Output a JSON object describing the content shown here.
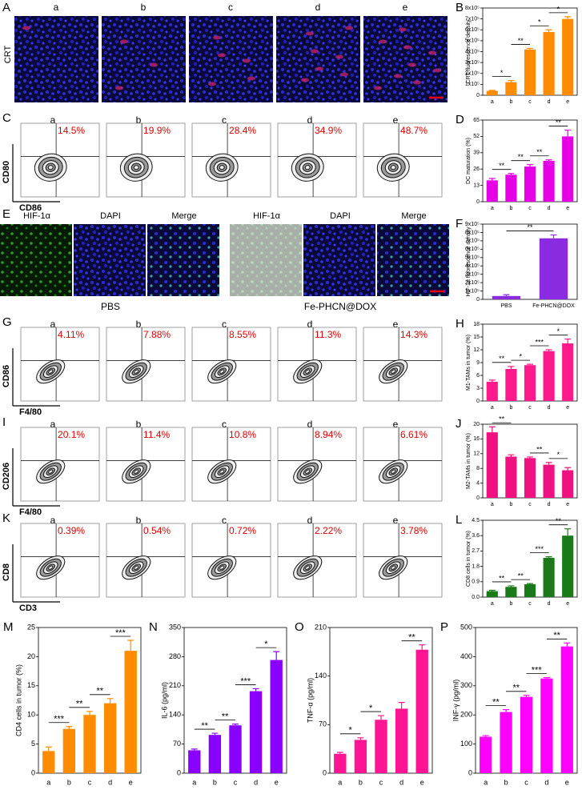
{
  "image_rows": [
    {
      "letter": "A",
      "row_label": "CRT",
      "groups": [
        "a",
        "b",
        "c",
        "d",
        "e"
      ]
    },
    {
      "letter": "E",
      "sets": [
        {
          "label": "PBS",
          "channels": [
            "HIF-1α",
            "DAPI",
            "Merge"
          ]
        },
        {
          "label": "Fe-PHCN@DOX",
          "channels": [
            "HIF-1α",
            "DAPI",
            "Merge"
          ]
        }
      ]
    }
  ],
  "flow_rows": [
    {
      "letter": "C",
      "y_label": "CD80",
      "x_label": "CD86",
      "groups": [
        "a",
        "b",
        "c",
        "d",
        "e"
      ],
      "percents": [
        "14.5%",
        "19.9%",
        "28.4%",
        "34.9%",
        "48.7%"
      ]
    },
    {
      "letter": "G",
      "y_label": "CD86",
      "x_label": "F4/80",
      "groups": [
        "a",
        "b",
        "c",
        "d",
        "e"
      ],
      "percents": [
        "4.11%",
        "7.88%",
        "8.55%",
        "11.3%",
        "14.3%"
      ]
    },
    {
      "letter": "I",
      "y_label": "CD206",
      "x_label": "F4/80",
      "groups": [
        "a",
        "b",
        "c",
        "d",
        "e"
      ],
      "percents": [
        "20.1%",
        "11.4%",
        "10.8%",
        "8.94%",
        "6.61%"
      ]
    },
    {
      "letter": "K",
      "y_label": "CD8",
      "x_label": "CD3",
      "groups": [
        "a",
        "b",
        "c",
        "d",
        "e"
      ],
      "percents": [
        "0.39%",
        "0.54%",
        "0.72%",
        "2.22%",
        "3.78%"
      ]
    }
  ],
  "chart_data": [
    {
      "type": "bar",
      "panel": "B",
      "y_label": "CRT fluorescence density",
      "categories": [
        "a",
        "b",
        "c",
        "d",
        "e"
      ],
      "values": [
        40000,
        120000,
        420000,
        580000,
        700000
      ],
      "errors": [
        5000,
        15000,
        10000,
        20000,
        20000
      ],
      "color": "#ff8c00",
      "ylim": [
        0,
        800000
      ],
      "yticks": [
        0,
        {
          "value": 100000,
          "label": "1x10⁵"
        },
        {
          "value": 200000,
          "label": "2x10⁵"
        },
        {
          "value": 300000,
          "label": "3x10⁵"
        },
        {
          "value": 400000,
          "label": "4x10⁵"
        },
        {
          "value": 500000,
          "label": "5x10⁵"
        },
        {
          "value": 600000,
          "label": "6x10⁵"
        },
        {
          "value": 700000,
          "label": "7x10⁵"
        },
        {
          "value": 800000,
          "label": "8x10⁵"
        }
      ],
      "significance": [
        "*",
        "**",
        "*",
        "*"
      ]
    },
    {
      "type": "bar",
      "panel": "D",
      "y_label": "DC maturation (%)",
      "categories": [
        "a",
        "b",
        "c",
        "d",
        "e"
      ],
      "values": [
        17,
        21.5,
        28,
        32.5,
        52
      ],
      "errors": [
        1.5,
        1,
        1.5,
        0.8,
        5
      ],
      "color": "#e600e6",
      "ylim": [
        0,
        65
      ],
      "yticks": [
        0,
        13,
        26,
        39,
        52,
        65
      ],
      "significance": [
        "**",
        "**",
        "**",
        "**"
      ]
    },
    {
      "type": "bar",
      "panel": "F",
      "y_label": "HIF-1α fluorescence density",
      "categories": [
        "PBS",
        "Fe-PHCN@DOX"
      ],
      "values": [
        40000,
        730000
      ],
      "errors": [
        15000,
        40000
      ],
      "color": "#8a2be2",
      "ylim": [
        0,
        900000
      ],
      "yticks": [
        0,
        {
          "value": 100000,
          "label": "1x10⁵"
        },
        {
          "value": 200000,
          "label": "2x10⁵"
        },
        {
          "value": 300000,
          "label": "3x10⁵"
        },
        {
          "value": 400000,
          "label": "4x10⁵"
        },
        {
          "value": 500000,
          "label": "5x10⁵"
        },
        {
          "value": 600000,
          "label": "6x10⁵"
        },
        {
          "value": 700000,
          "label": "7x10⁵"
        },
        {
          "value": 800000,
          "label": "8x10⁵"
        },
        {
          "value": 900000,
          "label": "9x10⁵"
        }
      ],
      "significance": [
        "**"
      ]
    },
    {
      "type": "bar",
      "panel": "H",
      "y_label": "M1-TAMs in tumor (%)",
      "categories": [
        "a",
        "b",
        "c",
        "d",
        "e"
      ],
      "values": [
        4.5,
        7.5,
        8.4,
        11.7,
        13.5
      ],
      "errors": [
        0.4,
        0.6,
        0.2,
        0.3,
        1
      ],
      "color": "#ff1a8c",
      "ylim": [
        0,
        18
      ],
      "yticks": [
        0,
        3,
        6,
        9,
        12,
        15,
        18
      ],
      "significance": [
        "**",
        "*",
        "***",
        "*"
      ]
    },
    {
      "type": "bar",
      "panel": "J",
      "y_label": "M2-TAMs in tumor (%)",
      "categories": [
        "a",
        "b",
        "c",
        "d",
        "e"
      ],
      "values": [
        17.8,
        11.2,
        10.8,
        9,
        7.5
      ],
      "errors": [
        1.5,
        0.5,
        0.3,
        0.6,
        0.7
      ],
      "color": "#f0107f",
      "ylim": [
        0,
        20
      ],
      "yticks": [
        0,
        4,
        8,
        12,
        16,
        20
      ],
      "significance": [
        "**",
        null,
        "**",
        "*"
      ]
    },
    {
      "type": "bar",
      "panel": "L",
      "y_label": "CD8 cells in tumor (%)",
      "categories": [
        "a",
        "b",
        "c",
        "d",
        "e"
      ],
      "values": [
        0.35,
        0.6,
        0.75,
        2.3,
        3.6
      ],
      "errors": [
        0.05,
        0.06,
        0.04,
        0.06,
        0.4
      ],
      "color": "#1a7a1a",
      "ylim": [
        0,
        4.5
      ],
      "yticks": [
        {
          "value": 0,
          "label": "0.0"
        },
        0.9,
        1.8,
        2.7,
        3.6,
        4.5
      ],
      "significance": [
        "**",
        "**",
        "***",
        "**"
      ]
    },
    {
      "type": "bar",
      "panel": "M",
      "y_label": "CD4 cells in tumor (%)",
      "categories": [
        "a",
        "b",
        "c",
        "d",
        "e"
      ],
      "values": [
        3.8,
        7.6,
        10,
        12,
        21
      ],
      "errors": [
        0.7,
        0.4,
        0.6,
        0.8,
        1.8
      ],
      "color": "#ff8c00",
      "ylim": [
        0,
        25
      ],
      "yticks": [
        0,
        5,
        10,
        15,
        20,
        25
      ],
      "significance": [
        "***",
        "**",
        "**",
        "***"
      ]
    },
    {
      "type": "bar",
      "panel": "N",
      "y_label": "IL-6 (pg/ml)",
      "categories": [
        "a",
        "b",
        "c",
        "d",
        "e"
      ],
      "values": [
        55,
        92,
        115,
        197,
        272
      ],
      "errors": [
        3,
        4,
        3,
        6,
        20
      ],
      "color": "#8a00ff",
      "ylim": [
        0,
        350
      ],
      "yticks": [
        0,
        70,
        140,
        210,
        280,
        350
      ],
      "significance": [
        "**",
        "**",
        "***",
        "*"
      ]
    },
    {
      "type": "bar",
      "panel": "O",
      "y_label": "TNF-α (pg/ml)",
      "categories": [
        "a",
        "b",
        "c",
        "d",
        "e"
      ],
      "values": [
        28,
        48,
        77,
        93,
        178
      ],
      "errors": [
        2,
        3,
        6,
        9,
        7
      ],
      "color": "#ff1493",
      "ylim": [
        0,
        210
      ],
      "yticks": [
        0,
        70,
        140,
        210
      ],
      "significance": [
        "*",
        "*",
        null,
        "**"
      ]
    },
    {
      "type": "bar",
      "panel": "P",
      "y_label": "INF-γ (pg/ml)",
      "categories": [
        "a",
        "b",
        "c",
        "d",
        "e"
      ],
      "values": [
        125,
        210,
        262,
        325,
        435
      ],
      "errors": [
        4,
        8,
        5,
        3,
        12
      ],
      "color": "#ff00ff",
      "ylim": [
        0,
        500
      ],
      "yticks": [
        0,
        100,
        200,
        300,
        400,
        500
      ],
      "significance": [
        "**",
        "**",
        "***",
        "**"
      ]
    }
  ]
}
